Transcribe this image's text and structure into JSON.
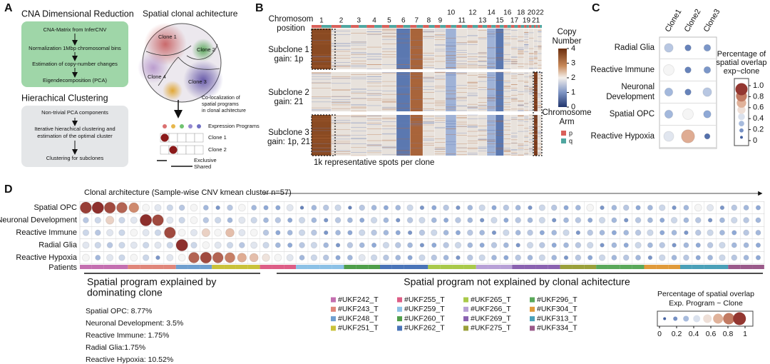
{
  "panel_letters": [
    "A",
    "B",
    "C",
    "D"
  ],
  "panel_a": {
    "reduction": {
      "title": "CNA Dimensional Reduction",
      "steps": [
        "CNA-Matrix from InferCNV",
        "Normalization 1Mbp chromosomal bins",
        "Estimation of copy-number changes",
        "Eigendecomposition (PCA)"
      ]
    },
    "clustering": {
      "title": "Hierachical Clustering",
      "steps": [
        "Non-trivial PCA components",
        "Iterative hierachical clustering and",
        "estimation of the optimal cluster",
        "Clustering for subclones"
      ]
    },
    "spatial": {
      "title": "Spatial clonal achitecture",
      "clones": [
        "Clone 1",
        "Clone 2",
        "Clone 4",
        "Clone 3"
      ],
      "caption": [
        "Co-localization of",
        "spatial programs",
        "in clonal achitecture"
      ],
      "programs_label": "Expression Programs",
      "rows": [
        "Clone 1",
        "Clone 2"
      ],
      "exclusive": "Exclusive",
      "shared": "Shared"
    }
  },
  "panel_b": {
    "position_label": [
      "Chromosom",
      "position"
    ],
    "chromosomes": [
      "1",
      "2",
      "3",
      "4",
      "5",
      "6",
      "7",
      "8",
      "9",
      "10",
      "11",
      "12",
      "13",
      "14",
      "15",
      "16",
      "17",
      "18",
      "19",
      "20",
      "21",
      "22"
    ],
    "subclones": [
      {
        "name": "Subclone 1",
        "gain": "gain: 1p"
      },
      {
        "name": "Subclone 2",
        "gain": "gain: 21"
      },
      {
        "name": "Subclone 3",
        "gain": "gain: 1p, 21"
      }
    ],
    "copy_number": {
      "title": [
        "Copy",
        "Number"
      ],
      "lim": [
        0,
        4
      ],
      "ticks": [
        4,
        3,
        2,
        1,
        0
      ]
    },
    "arm": {
      "title": [
        "Chromosome",
        "Arm"
      ],
      "arms": [
        {
          "name": "p",
          "color": "#d9605a"
        },
        {
          "name": "q",
          "color": "#4fa6a0"
        }
      ]
    },
    "footer": "1k representative spots per clone"
  },
  "chart_data": [
    {
      "type": "dot-matrix",
      "rows": [
        "Radial Glia",
        "Reactive Immune",
        "Neuronal Development",
        "Spatial OPC",
        "Reactive Hypoxia"
      ],
      "columns": [
        "Clone1",
        "Clone2",
        "Clone3"
      ],
      "values": [
        [
          0.35,
          0.15,
          0.2
        ],
        [
          0.5,
          0.15,
          0.2
        ],
        [
          0.3,
          0.15,
          0.35
        ],
        [
          0.3,
          0.5,
          0.25
        ],
        [
          0.45,
          0.7,
          0.1
        ]
      ],
      "colorbar": {
        "title": [
          "Percentage of",
          "spatial overlap",
          "exp~clone"
        ],
        "lim": [
          0,
          1
        ],
        "ticks": [
          {
            "value": 1,
            "label": "1.0"
          },
          0.8,
          0.6,
          0.4,
          0.2,
          0
        ]
      }
    },
    {
      "type": "dot-matrix",
      "title": "Clonal architecture (Sample-wise CNV kmean cluster n=57)",
      "rows": [
        "Spatial OPC",
        "Neuronal Development",
        "Reactive Immune",
        "Radial Glia",
        "Reactive Hypoxia"
      ],
      "values": [
        [
          0.92,
          0.95,
          0.9,
          0.85,
          0.78,
          0.5,
          0.45,
          0.4,
          0.35,
          0.5,
          0.3,
          0.2,
          0.35,
          0.5,
          0.3,
          0.25,
          0.25,
          0.45,
          0.15,
          0.3,
          0.35,
          0.4,
          0.15,
          0.35,
          0.3,
          0.25,
          0.3,
          0.4,
          0.2,
          0.25,
          0.35,
          0.2,
          0.3,
          0.4,
          0.25,
          0.35,
          0.3,
          0.2,
          0.4,
          0.35,
          0.25,
          0.3,
          0.5,
          0.2,
          0.3,
          0.35,
          0.25,
          0.3,
          0.4,
          0.2,
          0.3,
          0.5,
          0.45,
          0.2,
          0.35,
          0.3,
          0.25
        ],
        [
          0.35,
          0.4,
          0.6,
          0.4,
          0.45,
          0.95,
          0.9,
          0.45,
          0.4,
          0.5,
          0.35,
          0.4,
          0.3,
          0.45,
          0.4,
          0.3,
          0.35,
          0.25,
          0.4,
          0.3,
          0.2,
          0.35,
          0.3,
          0.25,
          0.4,
          0.3,
          0.2,
          0.35,
          0.4,
          0.3,
          0.25,
          0.35,
          0.3,
          0.2,
          0.4,
          0.25,
          0.35,
          0.3,
          0.4,
          0.2,
          0.3,
          0.35,
          0.25,
          0.4,
          0.3,
          0.2,
          0.35,
          0.3,
          0.25,
          0.4,
          0.3,
          0.35,
          0.2,
          0.3,
          0.4,
          0.35,
          0.3
        ],
        [
          0.4,
          0.35,
          0.45,
          0.4,
          0.5,
          0.45,
          0.4,
          0.9,
          0.5,
          0.45,
          0.6,
          0.5,
          0.65,
          0.45,
          0.5,
          0.35,
          0.25,
          0.3,
          0.4,
          0.35,
          0.2,
          0.3,
          0.25,
          0.4,
          0.35,
          0.3,
          0.25,
          0.2,
          0.35,
          0.4,
          0.3,
          0.25,
          0.35,
          0.3,
          0.2,
          0.4,
          0.3,
          0.35,
          0.25,
          0.3,
          0.4,
          0.2,
          0.35,
          0.3,
          0.25,
          0.3,
          0.35,
          0.4,
          0.25,
          0.3,
          0.2,
          0.35,
          0.4,
          0.3,
          0.25,
          0.35,
          0.3
        ],
        [
          0.45,
          0.4,
          0.35,
          0.4,
          0.45,
          0.4,
          0.45,
          0.4,
          0.95,
          0.4,
          0.5,
          0.45,
          0.4,
          0.35,
          0.45,
          0.4,
          0.3,
          0.25,
          0.35,
          0.4,
          0.3,
          0.2,
          0.35,
          0.3,
          0.25,
          0.4,
          0.35,
          0.3,
          0.2,
          0.25,
          0.35,
          0.4,
          0.3,
          0.25,
          0.35,
          0.3,
          0.2,
          0.4,
          0.35,
          0.25,
          0.3,
          0.35,
          0.4,
          0.2,
          0.3,
          0.25,
          0.4,
          0.3,
          0.35,
          0.2,
          0.3,
          0.25,
          0.35,
          0.4,
          0.3,
          0.3,
          0.25
        ],
        [
          0.5,
          0.3,
          0.45,
          0.4,
          0.5,
          0.4,
          0.2,
          0.45,
          0.5,
          0.85,
          0.9,
          0.85,
          0.8,
          0.7,
          0.65,
          0.55,
          0.5,
          0.45,
          0.3,
          0.4,
          0.35,
          0.25,
          0.3,
          0.45,
          0.4,
          0.35,
          0.3,
          0.25,
          0.4,
          0.35,
          0.3,
          0.2,
          0.35,
          0.4,
          0.3,
          0.25,
          0.35,
          0.3,
          0.4,
          0.3,
          0.2,
          0.35,
          0.25,
          0.4,
          0.3,
          0.35,
          0.3,
          0.2,
          0.4,
          0.3,
          0.35,
          0.25,
          0.3,
          0.4,
          0.35,
          0.3,
          0.25
        ]
      ],
      "patients_label": "Patients",
      "colorbar": {
        "title": [
          "Percentage of spatial overlap",
          "Exp. Program ~ Clone"
        ],
        "lim": [
          0,
          1
        ],
        "ticks": [
          0,
          0.2,
          0.4,
          0.6,
          0.8,
          1
        ]
      }
    }
  ],
  "panel_d": {
    "explained": {
      "title": [
        "Spatial program explained by",
        "dominating clone"
      ],
      "items": [
        "Spatial OPC: 8.77%",
        "Neuronal Development: 3.5%",
        "Reactive Immune: 1.75%",
        "Radial Glia:1.75%",
        "Reactive Hypoxia: 10.52%"
      ]
    },
    "not_explained": {
      "title": "Spatial program not explained by clonal achitecture"
    },
    "patients": [
      {
        "name": "#UKF242_T",
        "color": "#c46fb0"
      },
      {
        "name": "#UKF243_T",
        "color": "#e0867a"
      },
      {
        "name": "#UKF248_T",
        "color": "#6f9fcf"
      },
      {
        "name": "#UKF251_T",
        "color": "#c9c23a"
      },
      {
        "name": "#UKF255_T",
        "color": "#dd5d86"
      },
      {
        "name": "#UKF259_T",
        "color": "#8cc1e6"
      },
      {
        "name": "#UKF260_T",
        "color": "#4f9e4a"
      },
      {
        "name": "#UKF262_T",
        "color": "#4a74b8"
      },
      {
        "name": "#UKF265_T",
        "color": "#a9c94a"
      },
      {
        "name": "#UKF266_T",
        "color": "#b7a0d6"
      },
      {
        "name": "#UKF269_T",
        "color": "#8a62b0"
      },
      {
        "name": "#UKF275_T",
        "color": "#9aa03a"
      },
      {
        "name": "#UKF296_T",
        "color": "#5aa85a"
      },
      {
        "name": "#UKF304_T",
        "color": "#e09a3a"
      },
      {
        "name": "#UKF313_T",
        "color": "#4aa0b8"
      },
      {
        "name": "#UKF334_T",
        "color": "#9a5a8a"
      }
    ]
  }
}
